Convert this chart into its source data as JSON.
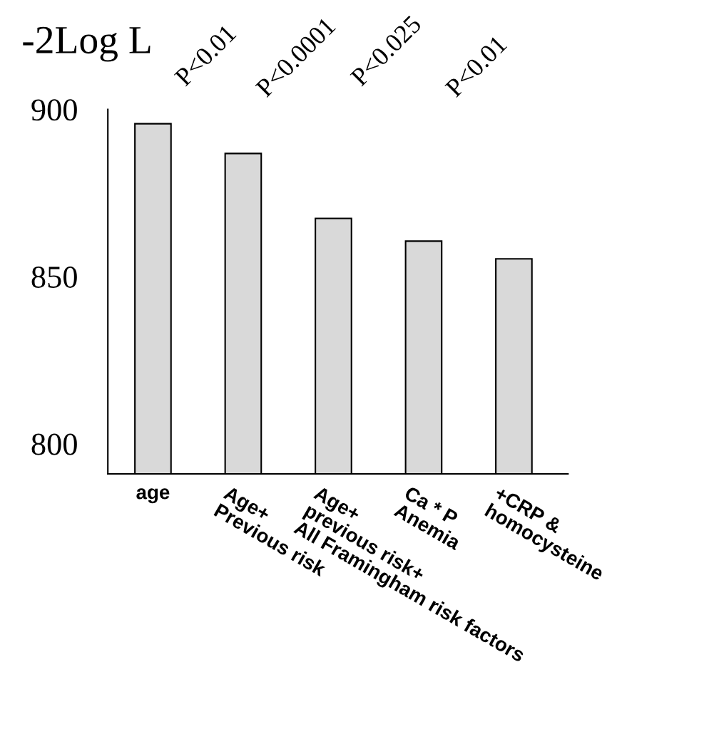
{
  "chart_data": {
    "type": "bar",
    "title": "-2Log L",
    "categories": [
      "age",
      "Age+\nPrevious risk",
      "Age+\nprevious risk+\nAll Framingham risk factors",
      "Ca * P\nAnemia",
      "+CRP &\nhomocysteine"
    ],
    "values": [
      895.7,
      886.8,
      867.4,
      860.6,
      855.3
    ],
    "color": "#d9d9d9",
    "ylim": [
      791,
      900
    ],
    "yticks": [
      800,
      850,
      900
    ],
    "grid": false,
    "annotations": [
      "P<0.01",
      "P<0.0001",
      "P<0.025",
      "P<0.01"
    ]
  }
}
